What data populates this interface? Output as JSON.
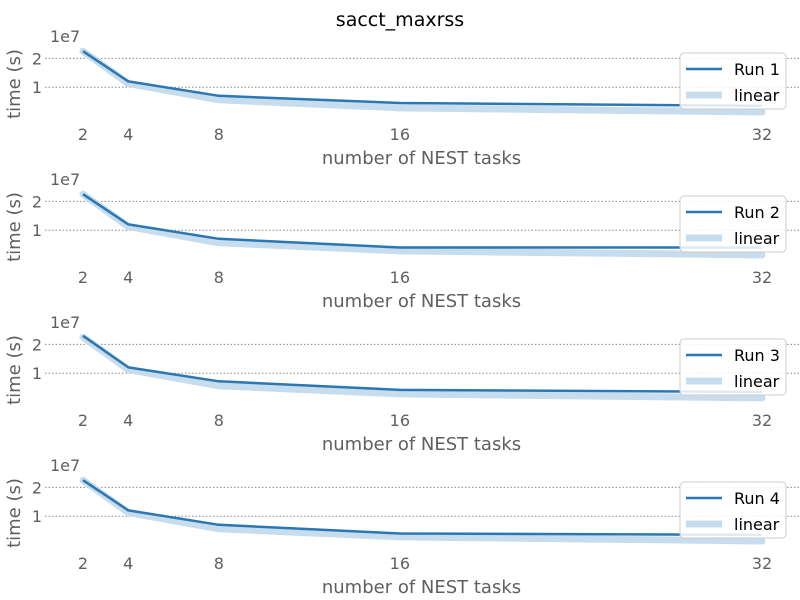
{
  "chart_data": {
    "title": "sacct_maxrss",
    "type": "line",
    "xlabel": "number of NEST tasks",
    "ylabel": "time (s)",
    "y_scale_label": "1e7",
    "x_ticks": [
      2,
      4,
      8,
      16,
      32
    ],
    "y_ticks": [
      1,
      2
    ],
    "y_tick_labels": [
      "1",
      "2"
    ],
    "y_unit_multiplier": 10000000,
    "x_range": [
      2,
      32
    ],
    "y_range": [
      0,
      2.5
    ],
    "grid": "horizontal dotted",
    "legend_placement": "right",
    "colors": {
      "run": "#2b77b3",
      "linear": "#c7dcec"
    },
    "panels": [
      {
        "series": [
          {
            "name": "Run 1",
            "x": [
              2,
              4,
              8,
              16,
              32
            ],
            "y": [
              2.25,
              1.2,
              0.7,
              0.45,
              0.35
            ]
          },
          {
            "name": "linear",
            "x": [
              2,
              4,
              8,
              16,
              32
            ],
            "y": [
              2.25,
              1.125,
              0.5625,
              0.28125,
              0.140625
            ]
          }
        ]
      },
      {
        "series": [
          {
            "name": "Run 2",
            "x": [
              2,
              4,
              8,
              16,
              32
            ],
            "y": [
              2.25,
              1.2,
              0.7,
              0.4,
              0.4
            ]
          },
          {
            "name": "linear",
            "x": [
              2,
              4,
              8,
              16,
              32
            ],
            "y": [
              2.25,
              1.125,
              0.5625,
              0.28125,
              0.140625
            ]
          }
        ]
      },
      {
        "series": [
          {
            "name": "Run 3",
            "x": [
              2,
              4,
              8,
              16,
              32
            ],
            "y": [
              2.3,
              1.2,
              0.72,
              0.42,
              0.35
            ]
          },
          {
            "name": "linear",
            "x": [
              2,
              4,
              8,
              16,
              32
            ],
            "y": [
              2.25,
              1.125,
              0.5625,
              0.28125,
              0.140625
            ]
          }
        ]
      },
      {
        "series": [
          {
            "name": "Run 4",
            "x": [
              2,
              4,
              8,
              16,
              32
            ],
            "y": [
              2.25,
              1.2,
              0.7,
              0.4,
              0.35
            ]
          },
          {
            "name": "linear",
            "x": [
              2,
              4,
              8,
              16,
              32
            ],
            "y": [
              2.25,
              1.125,
              0.5625,
              0.28125,
              0.140625
            ]
          }
        ]
      }
    ]
  }
}
